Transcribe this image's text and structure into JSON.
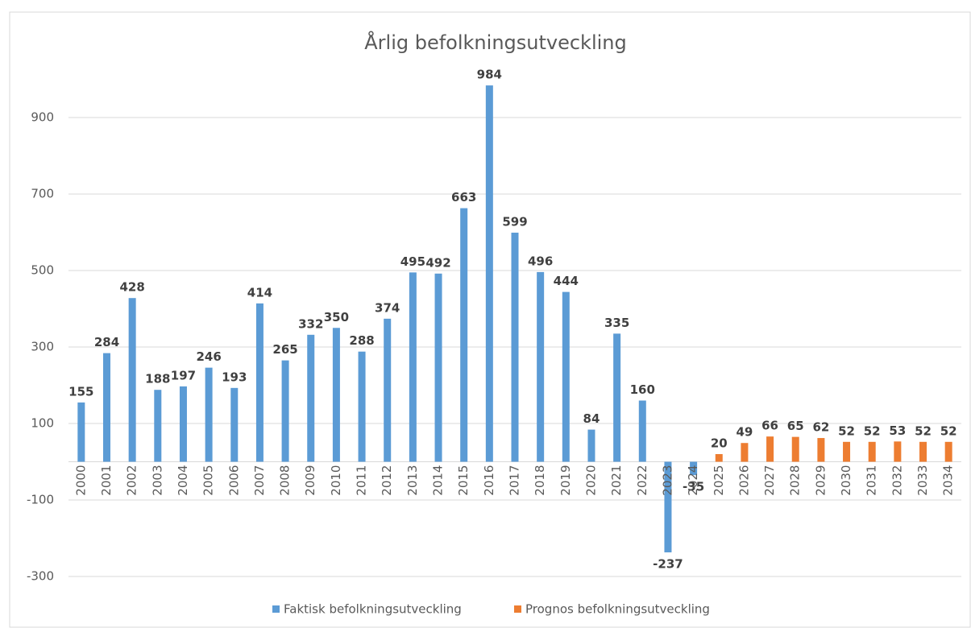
{
  "chart_data": {
    "type": "bar",
    "title": "Årlig befolkningsutveckling",
    "categories": [
      "2000",
      "2001",
      "2002",
      "2003",
      "2004",
      "2005",
      "2006",
      "2007",
      "2008",
      "2009",
      "2010",
      "2011",
      "2012",
      "2013",
      "2014",
      "2015",
      "2016",
      "2017",
      "2018",
      "2019",
      "2020",
      "2021",
      "2022",
      "2023",
      "2024",
      "2025",
      "2026",
      "2027",
      "2028",
      "2029",
      "2030",
      "2031",
      "2032",
      "2033",
      "2034"
    ],
    "series": [
      {
        "name": "Faktisk befolkningsutveckling",
        "color": "#5b9bd5",
        "values": [
          155,
          284,
          428,
          188,
          197,
          246,
          193,
          414,
          265,
          332,
          350,
          288,
          374,
          495,
          492,
          663,
          984,
          599,
          496,
          444,
          84,
          335,
          160,
          -237,
          -35,
          null,
          null,
          null,
          null,
          null,
          null,
          null,
          null,
          null,
          null
        ]
      },
      {
        "name": "Prognos befolkningsutveckling",
        "color": "#ed7d31",
        "values": [
          null,
          null,
          null,
          null,
          null,
          null,
          null,
          null,
          null,
          null,
          null,
          null,
          null,
          null,
          null,
          null,
          null,
          null,
          null,
          null,
          null,
          null,
          null,
          null,
          null,
          20,
          49,
          66,
          65,
          62,
          52,
          52,
          53,
          52,
          52
        ]
      }
    ],
    "ylim": [
      -300,
      1100
    ],
    "yticks": [
      -300,
      -100,
      100,
      300,
      500,
      700,
      900
    ],
    "grid": true,
    "legend": "bottom"
  }
}
